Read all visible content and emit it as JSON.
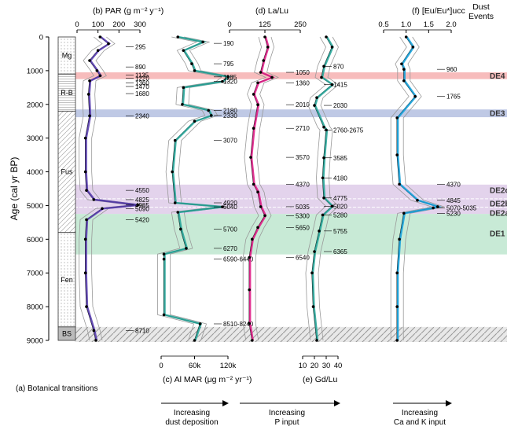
{
  "colors": {
    "par": "#5a3fb0",
    "almar": "#2aa79b",
    "lalu": "#e0218a",
    "gdlu": "#2aa79b",
    "eueu": "#1aa3dc",
    "de4": "#f4a6a6",
    "de3": "#aab7dc",
    "de2": "#d9c4e6",
    "de1": "#b6e3c8"
  },
  "y_axis": {
    "label": "Age (cal yr BP)",
    "ticks": [
      "0",
      "1000",
      "2000",
      "3000",
      "4000",
      "5000",
      "6000",
      "7000",
      "8000",
      "9000"
    ]
  },
  "headers": {
    "par": "(b) PAR (g m⁻² y⁻¹)",
    "lalu": "(d) La/Lu",
    "eueu": "(f) [Eu/Eu*]ucc",
    "dust_events": "Dust\nEvents"
  },
  "top_ticks": {
    "par": [
      "0",
      "100",
      "200",
      "300"
    ],
    "lalu": [
      "0",
      "125",
      "250"
    ],
    "eueu": [
      "0.5",
      "1.0",
      "1.5",
      "2.0"
    ]
  },
  "bottom_axes": {
    "almar": {
      "label": "(c) Al MAR (μg m⁻² yr⁻¹)",
      "ticks": [
        "0",
        "60k",
        "120k"
      ]
    },
    "gdlu": {
      "label": "(e) Gd/Lu",
      "ticks": [
        "10",
        "20",
        "30",
        "40"
      ]
    }
  },
  "botanical": {
    "label": "(a) Botanical transitions",
    "zones": [
      "Mg",
      "R-B",
      "Fus",
      "Fen",
      "BS"
    ]
  },
  "arrows": {
    "almar": "Increasing\ndust deposition",
    "lalu": "Increasing\nP input",
    "eueu": "Increasing\nCa and K input"
  },
  "dust_events": [
    {
      "name": "DE4",
      "range": [
        1050,
        1250
      ]
    },
    {
      "name": "DE3",
      "range": [
        2150,
        2380
      ]
    },
    {
      "name": "DE2c",
      "range": [
        4380,
        4800
      ]
    },
    {
      "name": "DE2b",
      "range": [
        4800,
        5050
      ]
    },
    {
      "name": "DE2a",
      "range": [
        5050,
        5250
      ]
    },
    {
      "name": "DE1",
      "range": [
        5250,
        6450
      ]
    }
  ],
  "annotations": {
    "par": [
      "295",
      "890",
      "1135",
      "1220",
      "1360",
      "1470",
      "1680",
      "2340",
      "4550",
      "4825",
      "4985",
      "5090",
      "5420",
      "8710"
    ],
    "almar": [
      "190",
      "795",
      "1185",
      "1320",
      "2180",
      "2330",
      "3070",
      "4920",
      "5040",
      "5700",
      "6270",
      "6590-6440",
      "8510-8240"
    ],
    "lalu": [
      "1050",
      "1360",
      "2010",
      "2710",
      "3570",
      "4370",
      "5035",
      "5300",
      "5650",
      "6540"
    ],
    "gdlu": [
      "870",
      "1415",
      "2030",
      "2760-\n2675",
      "3585",
      "4180",
      "4775",
      "5020",
      "5280",
      "5755",
      "6365"
    ],
    "eueu": [
      "960",
      "1765",
      "4370",
      "4845",
      "5070-\n5035",
      "5230"
    ]
  },
  "chart_data": [
    {
      "type": "line",
      "title": "(b) PAR (g m⁻² y⁻¹)",
      "xlim": [
        0,
        300
      ],
      "ylim": [
        0,
        9000
      ],
      "ylabel": "Age (cal yr BP)",
      "points": [
        [
          110,
          0
        ],
        [
          150,
          200
        ],
        [
          100,
          400
        ],
        [
          60,
          700
        ],
        [
          95,
          1000
        ],
        [
          110,
          1150
        ],
        [
          60,
          1300
        ],
        [
          55,
          1700
        ],
        [
          60,
          2340
        ],
        [
          40,
          3000
        ],
        [
          40,
          4000
        ],
        [
          45,
          4550
        ],
        [
          80,
          4825
        ],
        [
          290,
          4985
        ],
        [
          120,
          5090
        ],
        [
          45,
          5420
        ],
        [
          40,
          6000
        ],
        [
          40,
          7000
        ],
        [
          45,
          8000
        ],
        [
          80,
          8710
        ],
        [
          90,
          9000
        ]
      ]
    },
    {
      "type": "line",
      "title": "(c) Al MAR (μg m⁻² yr⁻¹)",
      "xlim": [
        0,
        120000
      ],
      "ylim": [
        0,
        9000
      ],
      "points": [
        [
          30000,
          0
        ],
        [
          75000,
          150
        ],
        [
          40000,
          400
        ],
        [
          55000,
          795
        ],
        [
          60000,
          1000
        ],
        [
          120000,
          1185
        ],
        [
          110000,
          1320
        ],
        [
          40000,
          1500
        ],
        [
          38000,
          2000
        ],
        [
          85000,
          2180
        ],
        [
          90000,
          2330
        ],
        [
          60000,
          2500
        ],
        [
          25000,
          3070
        ],
        [
          20000,
          4000
        ],
        [
          25000,
          4920
        ],
        [
          110000,
          5040
        ],
        [
          30000,
          5200
        ],
        [
          35000,
          5700
        ],
        [
          45000,
          6270
        ],
        [
          5000,
          6440
        ],
        [
          5000,
          6590
        ],
        [
          5000,
          8240
        ],
        [
          70000,
          8510
        ],
        [
          60000,
          9000
        ]
      ]
    },
    {
      "type": "line",
      "title": "(d) La/Lu",
      "xlim": [
        0,
        250
      ],
      "ylim": [
        0,
        9000
      ],
      "points": [
        [
          125,
          0
        ],
        [
          135,
          300
        ],
        [
          120,
          700
        ],
        [
          110,
          1050
        ],
        [
          150,
          1200
        ],
        [
          100,
          1360
        ],
        [
          85,
          1700
        ],
        [
          100,
          2010
        ],
        [
          85,
          2710
        ],
        [
          75,
          3570
        ],
        [
          85,
          4370
        ],
        [
          100,
          4600
        ],
        [
          110,
          5035
        ],
        [
          125,
          5300
        ],
        [
          100,
          5650
        ],
        [
          80,
          6000
        ],
        [
          70,
          6540
        ],
        [
          70,
          7500
        ],
        [
          70,
          8500
        ],
        [
          80,
          9000
        ]
      ]
    },
    {
      "type": "line",
      "title": "(e) Gd/Lu",
      "xlim": [
        10,
        40
      ],
      "ylim": [
        0,
        9000
      ],
      "points": [
        [
          30,
          0
        ],
        [
          35,
          300
        ],
        [
          28,
          870
        ],
        [
          26,
          1200
        ],
        [
          35,
          1415
        ],
        [
          22,
          1800
        ],
        [
          20,
          2030
        ],
        [
          28,
          2675
        ],
        [
          30,
          2760
        ],
        [
          28,
          3585
        ],
        [
          27,
          4180
        ],
        [
          28,
          4775
        ],
        [
          35,
          5020
        ],
        [
          27,
          5280
        ],
        [
          24,
          5755
        ],
        [
          20,
          6365
        ],
        [
          18,
          7000
        ],
        [
          19,
          8000
        ],
        [
          22,
          9000
        ]
      ]
    },
    {
      "type": "line",
      "title": "(f) [Eu/Eu*]ucc",
      "xlim": [
        0.5,
        2.0
      ],
      "ylim": [
        0,
        9000
      ],
      "points": [
        [
          1.0,
          0
        ],
        [
          1.15,
          300
        ],
        [
          0.9,
          800
        ],
        [
          0.95,
          960
        ],
        [
          0.95,
          1300
        ],
        [
          1.2,
          1765
        ],
        [
          0.8,
          2400
        ],
        [
          0.8,
          3500
        ],
        [
          0.85,
          4370
        ],
        [
          1.25,
          4845
        ],
        [
          1.7,
          5035
        ],
        [
          1.6,
          5070
        ],
        [
          0.95,
          5230
        ],
        [
          0.85,
          6000
        ],
        [
          0.8,
          7000
        ],
        [
          0.8,
          8000
        ],
        [
          0.8,
          9000
        ]
      ]
    }
  ]
}
